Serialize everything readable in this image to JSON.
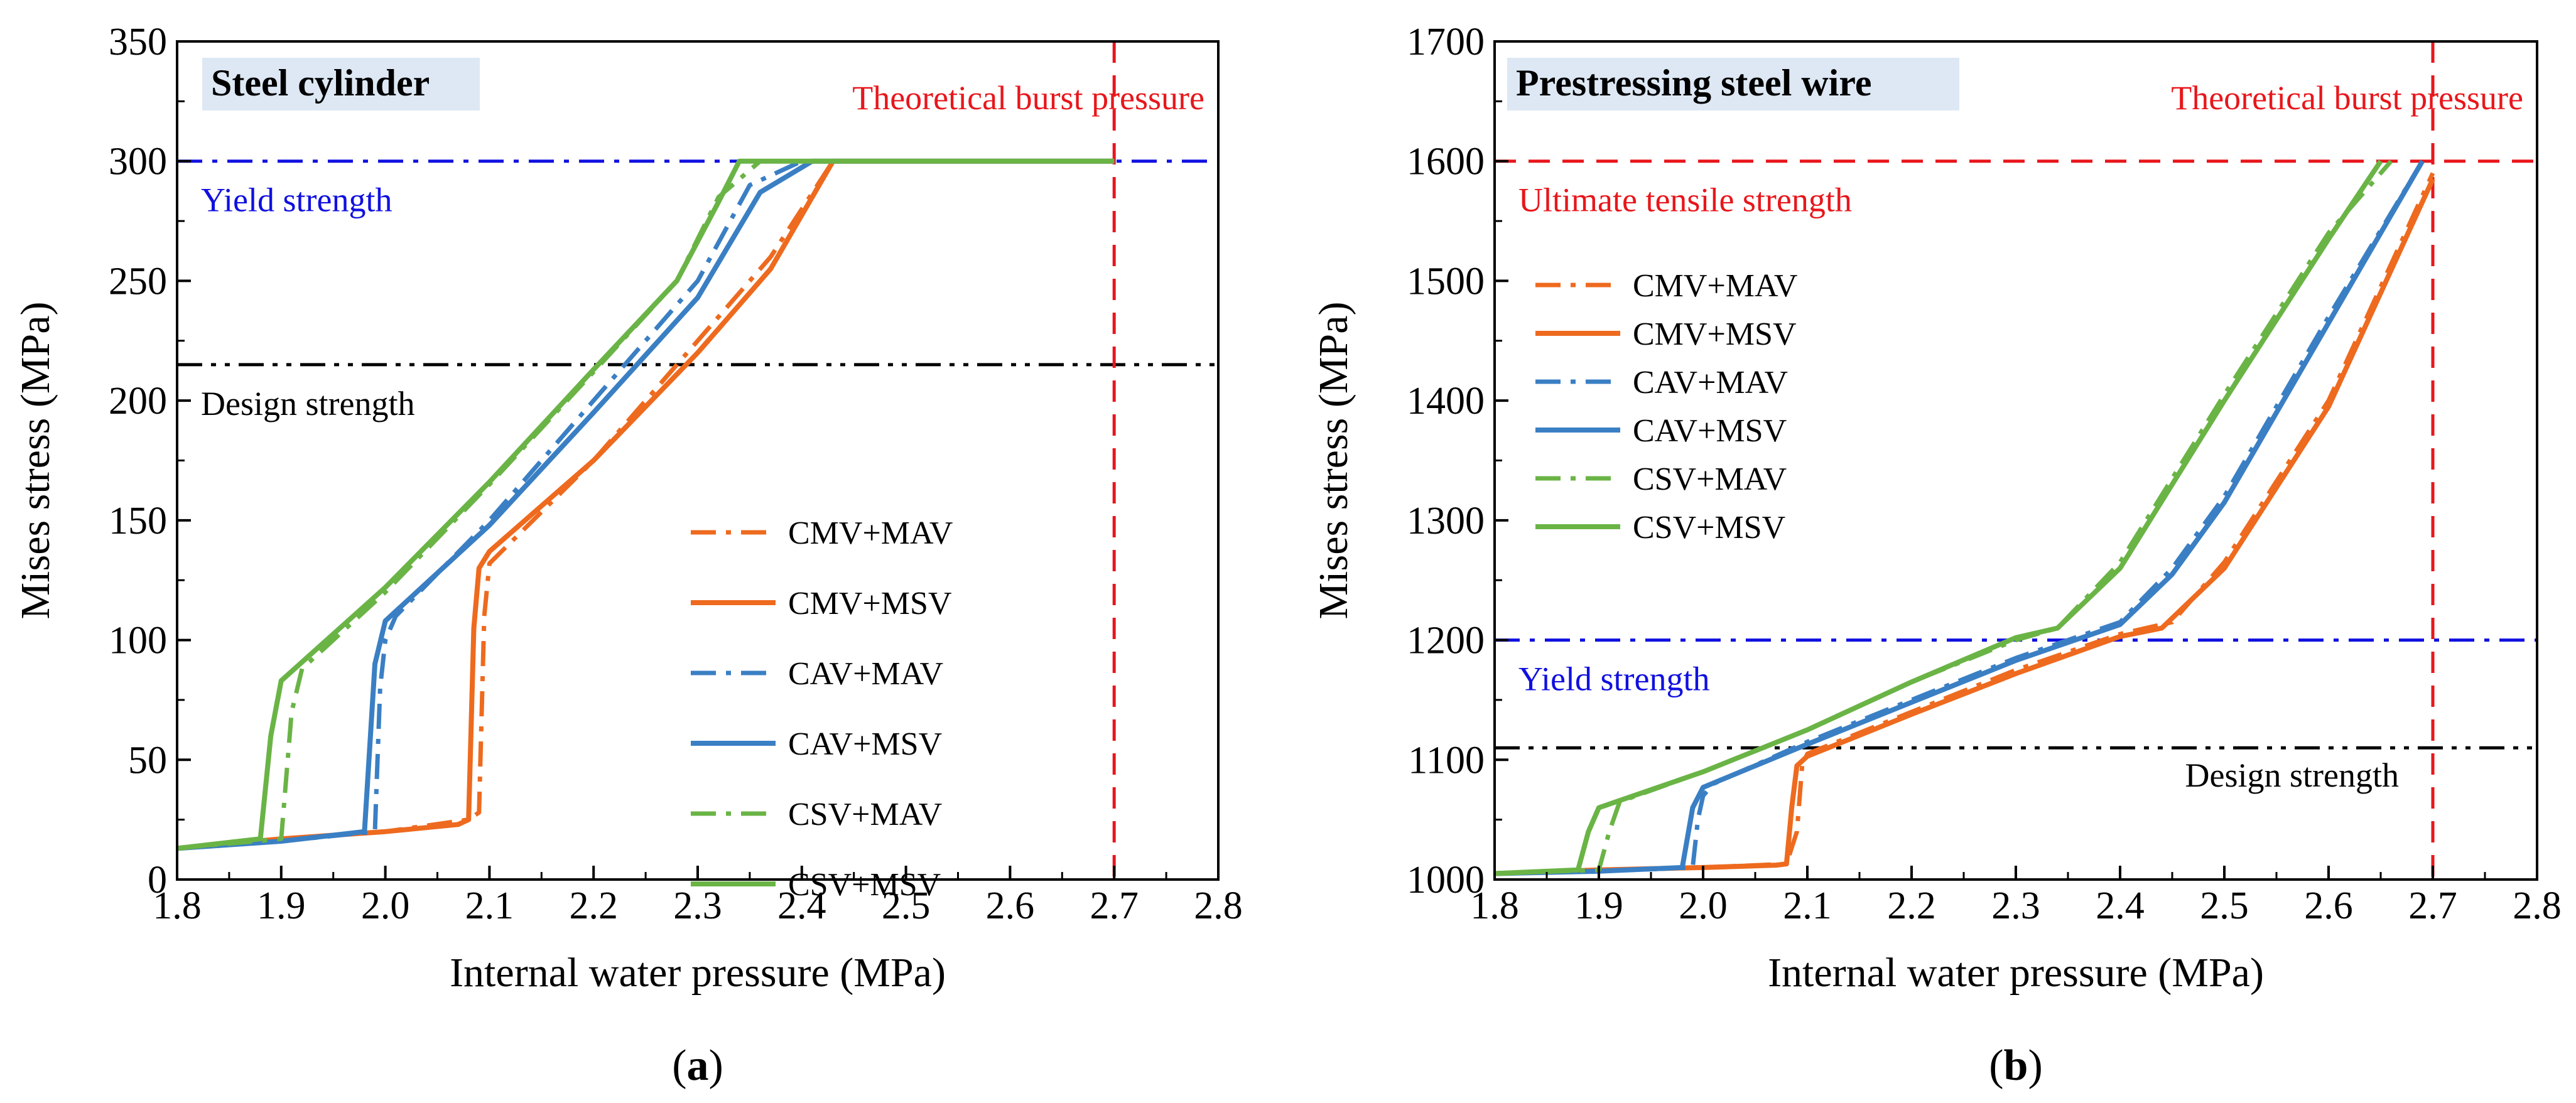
{
  "chart_data": [
    {
      "type": "line",
      "panel_label": "(a)",
      "panel_letter": "a",
      "title": "Steel cylinder",
      "xlabel": "Internal water pressure (MPa)",
      "ylabel": "Mises stress (MPa)",
      "xlim": [
        1.8,
        2.8
      ],
      "ylim": [
        0,
        350
      ],
      "xticks": [
        1.8,
        1.9,
        2.0,
        2.1,
        2.2,
        2.3,
        2.4,
        2.5,
        2.6,
        2.7,
        2.8
      ],
      "xtick_labels": [
        "1.8",
        "1.9",
        "2.0",
        "2.1",
        "2.2",
        "2.3",
        "2.4",
        "2.5",
        "2.6",
        "2.7",
        "2.8"
      ],
      "yticks": [
        0,
        50,
        100,
        150,
        200,
        250,
        300,
        350
      ],
      "ytick_labels": [
        "0",
        "50",
        "100",
        "150",
        "200",
        "250",
        "300",
        "350"
      ],
      "grid": false,
      "legend_position": "lower-right",
      "reference_lines": [
        {
          "orientation": "horizontal",
          "value": 300,
          "label": "Yield strength",
          "color": "#1010e0",
          "style": "dashdot",
          "label_anchor": "left-below"
        },
        {
          "orientation": "horizontal",
          "value": 215,
          "label": "Design strength",
          "color": "#000000",
          "style": "dashdotdot",
          "label_anchor": "left-below"
        },
        {
          "orientation": "vertical",
          "value": 2.7,
          "label": "Theoretical burst pressure",
          "color": "#e8161b",
          "style": "dashed",
          "label_anchor": "top-right"
        }
      ],
      "series": [
        {
          "name": "CMV+MAV",
          "color": "#ee6a1e",
          "style": "dashdot",
          "x": [
            1.8,
            1.9,
            2.0,
            2.08,
            2.09,
            2.095,
            2.1,
            2.2,
            2.3,
            2.37,
            2.43,
            2.7
          ],
          "y": [
            13,
            17,
            20,
            25,
            28,
            110,
            132,
            175,
            225,
            260,
            300,
            300
          ]
        },
        {
          "name": "CMV+MSV",
          "color": "#ee6a1e",
          "style": "solid",
          "x": [
            1.8,
            1.9,
            2.0,
            2.07,
            2.08,
            2.085,
            2.09,
            2.1,
            2.2,
            2.3,
            2.37,
            2.43,
            2.7
          ],
          "y": [
            13,
            17,
            20,
            23,
            25,
            105,
            130,
            137,
            175,
            220,
            255,
            300,
            300
          ]
        },
        {
          "name": "CAV+MAV",
          "color": "#3a7fc4",
          "style": "dashdot",
          "x": [
            1.8,
            1.9,
            1.99,
            1.995,
            2.0,
            2.01,
            2.1,
            2.2,
            2.3,
            2.35,
            2.4,
            2.7
          ],
          "y": [
            13,
            16,
            20,
            80,
            100,
            110,
            150,
            200,
            250,
            290,
            300,
            300
          ]
        },
        {
          "name": "CAV+MSV",
          "color": "#3a7fc4",
          "style": "solid",
          "x": [
            1.8,
            1.9,
            1.98,
            1.99,
            2.0,
            2.1,
            2.2,
            2.3,
            2.36,
            2.41,
            2.7
          ],
          "y": [
            13,
            16,
            20,
            90,
            108,
            148,
            195,
            243,
            287,
            300,
            300
          ]
        },
        {
          "name": "CSV+MAV",
          "color": "#6ab446",
          "style": "dashdot",
          "x": [
            1.8,
            1.9,
            1.91,
            1.92,
            2.0,
            2.1,
            2.2,
            2.28,
            2.32,
            2.36,
            2.7
          ],
          "y": [
            13,
            17,
            70,
            88,
            120,
            165,
            212,
            250,
            285,
            300,
            300
          ]
        },
        {
          "name": "CSV+MSV",
          "color": "#6ab446",
          "style": "solid",
          "x": [
            1.8,
            1.88,
            1.89,
            1.9,
            2.0,
            2.1,
            2.2,
            2.28,
            2.32,
            2.34,
            2.7
          ],
          "y": [
            13,
            17,
            60,
            83,
            122,
            166,
            213,
            250,
            283,
            300,
            300
          ]
        }
      ]
    },
    {
      "type": "line",
      "panel_label": "(b)",
      "panel_letter": "b",
      "title": "Prestressing steel wire",
      "xlabel": "Internal water pressure (MPa)",
      "ylabel": "Mises stress (MPa)",
      "xlim": [
        1.8,
        2.8
      ],
      "ylim": [
        1000,
        1700
      ],
      "xticks": [
        1.8,
        1.9,
        2.0,
        2.1,
        2.2,
        2.3,
        2.4,
        2.5,
        2.6,
        2.7,
        2.8
      ],
      "xtick_labels": [
        "1.8",
        "1.9",
        "2.0",
        "2.1",
        "2.2",
        "2.3",
        "2.4",
        "2.5",
        "2.6",
        "2.7",
        "2.8"
      ],
      "yticks": [
        1000,
        1100,
        1200,
        1300,
        1400,
        1500,
        1600,
        1700
      ],
      "ytick_labels": [
        "1000",
        "1100",
        "1200",
        "1300",
        "1400",
        "1500",
        "1600",
        "1700"
      ],
      "grid": false,
      "legend_position": "upper-left",
      "reference_lines": [
        {
          "orientation": "horizontal",
          "value": 1600,
          "label": "Ultimate tensile strength",
          "color": "#e8161b",
          "style": "dashed",
          "label_anchor": "left-below"
        },
        {
          "orientation": "horizontal",
          "value": 1200,
          "label": "Yield strength",
          "color": "#1010e0",
          "style": "dashdot",
          "label_anchor": "left-below"
        },
        {
          "orientation": "horizontal",
          "value": 1110,
          "label": "Design strength",
          "color": "#000000",
          "style": "dashdotdot",
          "label_anchor": "right-below"
        },
        {
          "orientation": "vertical",
          "value": 2.7,
          "label": "Theoretical burst pressure",
          "color": "#e8161b",
          "style": "dashed",
          "label_anchor": "top-right"
        }
      ],
      "series": [
        {
          "name": "CMV+MAV",
          "color": "#ee6a1e",
          "style": "dashdot",
          "x": [
            1.8,
            1.9,
            2.0,
            2.08,
            2.09,
            2.095,
            2.1,
            2.2,
            2.3,
            2.4,
            2.45,
            2.5,
            2.6,
            2.7
          ],
          "y": [
            1005,
            1008,
            1010,
            1013,
            1040,
            1095,
            1105,
            1140,
            1175,
            1205,
            1215,
            1265,
            1400,
            1590
          ]
        },
        {
          "name": "CMV+MSV",
          "color": "#ee6a1e",
          "style": "solid",
          "x": [
            1.8,
            1.9,
            2.0,
            2.07,
            2.08,
            2.085,
            2.09,
            2.1,
            2.2,
            2.3,
            2.4,
            2.44,
            2.5,
            2.6,
            2.7
          ],
          "y": [
            1005,
            1008,
            1010,
            1012,
            1013,
            1060,
            1095,
            1103,
            1138,
            1172,
            1203,
            1210,
            1260,
            1395,
            1585
          ]
        },
        {
          "name": "CAV+MAV",
          "color": "#3a7fc4",
          "style": "dashdot",
          "x": [
            1.8,
            1.9,
            1.99,
            1.995,
            2.0,
            2.01,
            2.1,
            2.2,
            2.3,
            2.4,
            2.45,
            2.5,
            2.6,
            2.69
          ],
          "y": [
            1005,
            1007,
            1010,
            1050,
            1070,
            1080,
            1115,
            1150,
            1185,
            1215,
            1260,
            1320,
            1470,
            1600
          ]
        },
        {
          "name": "CAV+MSV",
          "color": "#3a7fc4",
          "style": "solid",
          "x": [
            1.8,
            1.9,
            1.98,
            1.99,
            2.0,
            2.1,
            2.2,
            2.3,
            2.4,
            2.45,
            2.5,
            2.6,
            2.69
          ],
          "y": [
            1005,
            1007,
            1010,
            1060,
            1077,
            1113,
            1148,
            1183,
            1213,
            1255,
            1315,
            1465,
            1600
          ]
        },
        {
          "name": "CSV+MAV",
          "color": "#6ab446",
          "style": "dashdot",
          "x": [
            1.8,
            1.9,
            1.91,
            1.92,
            2.0,
            2.1,
            2.2,
            2.3,
            2.34,
            2.4,
            2.5,
            2.6,
            2.66
          ],
          "y": [
            1005,
            1008,
            1040,
            1065,
            1090,
            1125,
            1165,
            1200,
            1210,
            1265,
            1405,
            1540,
            1600
          ]
        },
        {
          "name": "CSV+MSV",
          "color": "#6ab446",
          "style": "solid",
          "x": [
            1.8,
            1.88,
            1.89,
            1.9,
            2.0,
            2.1,
            2.2,
            2.3,
            2.34,
            2.4,
            2.5,
            2.6,
            2.65
          ],
          "y": [
            1005,
            1008,
            1040,
            1060,
            1090,
            1125,
            1165,
            1202,
            1210,
            1260,
            1400,
            1535,
            1600
          ]
        }
      ]
    }
  ]
}
